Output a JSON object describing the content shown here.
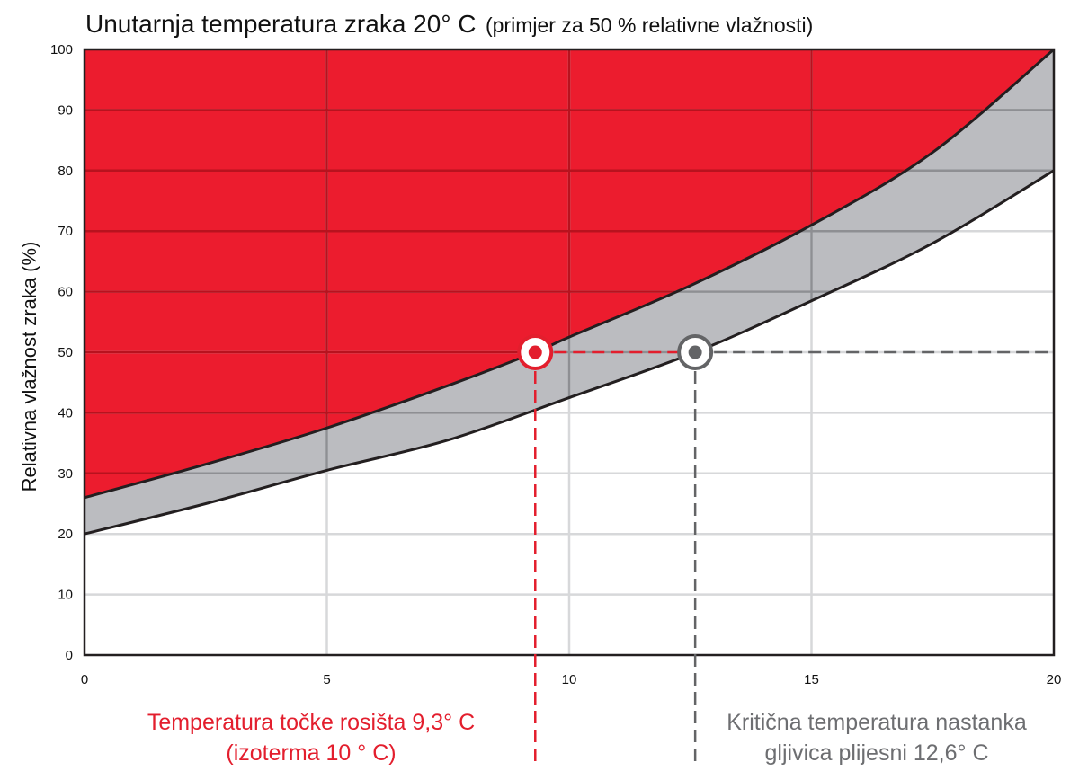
{
  "chart_data": {
    "type": "area",
    "title": "Unutarnja temperatura zraka 20° C",
    "subtitle": "(primjer za 50 % relativne vlažnosti)",
    "ylabel": "Relativna vlažnost zraka (%)",
    "xlabel": "",
    "xlim": [
      0,
      20
    ],
    "ylim": [
      0,
      100
    ],
    "x_ticks": [
      0,
      5,
      10,
      15,
      20
    ],
    "y_ticks": [
      0,
      10,
      20,
      30,
      40,
      50,
      60,
      70,
      80,
      90,
      100
    ],
    "grid": true,
    "series": [
      {
        "name": "",
        "role": "dew-point-boundary",
        "x": [
          0,
          2.5,
          5,
          7.5,
          9.3,
          10,
          12.5,
          15,
          17.5,
          20
        ],
        "values": [
          26,
          31.5,
          37.5,
          44.5,
          50,
          52.5,
          61,
          71,
          83,
          100
        ]
      },
      {
        "name": "",
        "role": "mould-boundary",
        "x": [
          0,
          2.5,
          5,
          7.5,
          10,
          12.6,
          15,
          17.5,
          20
        ],
        "values": [
          20,
          25,
          30.5,
          35.5,
          42.5,
          50,
          58.5,
          68,
          80
        ]
      }
    ],
    "markers": [
      {
        "x": 9.3,
        "y": 50,
        "color": "#e31e2d"
      },
      {
        "x": 12.6,
        "y": 50,
        "color": "#636466"
      }
    ],
    "annotations": [
      {
        "lines": [
          "Temperatura točke rosišta 9,3° C",
          "(izoterma 10 ° C)"
        ],
        "color": "#e31e2d"
      },
      {
        "lines": [
          "Kritična temperatura nastanka",
          "gljivica plijesni 12,6° C"
        ],
        "color": "#6d6e71"
      }
    ],
    "colors": {
      "condensation_zone": "#ec1c2e",
      "mould_zone": "#bbbcc0",
      "safe_zone": "#ffffff",
      "grid_on_red": "#b8121e",
      "grid_on_grey": "#8e8f93",
      "grid_on_white": "#d7d8da",
      "dew_point": "#e31e2d",
      "mould": "#636466"
    }
  }
}
